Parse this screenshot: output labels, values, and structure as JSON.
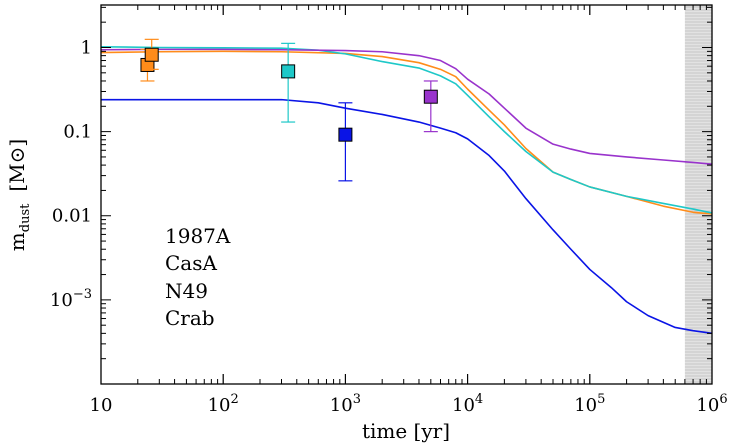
{
  "chart_data": {
    "type": "line",
    "xlabel": "time [yr]",
    "ylabel": {
      "main": "m",
      "sub": "dust",
      "unit": "[M⊙]"
    },
    "xscale": "log",
    "yscale": "log",
    "xlim": [
      10,
      1000000
    ],
    "ylim": [
      0.0001,
      3.2
    ],
    "xticks": [
      {
        "value": 10,
        "base": "10",
        "exp": ""
      },
      {
        "value": 100,
        "base": "10",
        "exp": "2"
      },
      {
        "value": 1000,
        "base": "10",
        "exp": "3"
      },
      {
        "value": 10000,
        "base": "10",
        "exp": "4"
      },
      {
        "value": 100000,
        "base": "10",
        "exp": "5"
      },
      {
        "value": 1000000,
        "base": "10",
        "exp": "6"
      }
    ],
    "yticks": [
      {
        "value": 0.001,
        "base": "10",
        "exp": "−3"
      },
      {
        "value": 0.01,
        "base": "0.01",
        "exp": ""
      },
      {
        "value": 0.1,
        "base": "0.1",
        "exp": ""
      },
      {
        "value": 1,
        "base": "1",
        "exp": ""
      }
    ],
    "shaded_region": {
      "x": [
        600000,
        1000000
      ],
      "color": "#bdbdbd"
    },
    "legend_position": "lower-left",
    "series": [
      {
        "name": "1987A",
        "color": "#ff8c1a",
        "x": [
          10,
          30,
          100,
          300,
          1000,
          2000,
          4000,
          6000,
          8000,
          10000,
          15000,
          20000,
          30000,
          50000,
          70000,
          100000,
          200000,
          400000,
          700000,
          1000000
        ],
        "y": [
          0.87,
          0.89,
          0.9,
          0.89,
          0.85,
          0.78,
          0.66,
          0.55,
          0.45,
          0.32,
          0.18,
          0.12,
          0.063,
          0.033,
          0.027,
          0.022,
          0.017,
          0.013,
          0.011,
          0.0105
        ]
      },
      {
        "name": "CasA",
        "color": "#1ec8c8",
        "x": [
          10,
          30,
          100,
          300,
          600,
          1000,
          2000,
          4000,
          6000,
          8000,
          10000,
          15000,
          20000,
          30000,
          50000,
          70000,
          100000,
          200000,
          400000,
          700000,
          1000000
        ],
        "y": [
          1.02,
          1.0,
          0.99,
          0.98,
          0.93,
          0.84,
          0.68,
          0.57,
          0.46,
          0.37,
          0.27,
          0.15,
          0.1,
          0.058,
          0.033,
          0.027,
          0.022,
          0.017,
          0.014,
          0.012,
          0.0108
        ]
      },
      {
        "name": "N49",
        "color": "#9933cc",
        "x": [
          10,
          30,
          100,
          300,
          1000,
          2000,
          4000,
          6000,
          8000,
          10000,
          15000,
          20000,
          30000,
          50000,
          70000,
          100000,
          200000,
          400000,
          700000,
          1000000
        ],
        "y": [
          0.94,
          0.95,
          0.95,
          0.94,
          0.92,
          0.89,
          0.8,
          0.7,
          0.56,
          0.42,
          0.28,
          0.19,
          0.11,
          0.071,
          0.062,
          0.055,
          0.05,
          0.046,
          0.043,
          0.041
        ]
      },
      {
        "name": "Crab",
        "color": "#0a14e6",
        "x": [
          10,
          30,
          100,
          300,
          600,
          1000,
          2000,
          4000,
          6000,
          8000,
          10000,
          15000,
          20000,
          30000,
          50000,
          70000,
          100000,
          150000,
          200000,
          300000,
          500000,
          700000,
          1000000
        ],
        "y": [
          0.24,
          0.24,
          0.24,
          0.24,
          0.22,
          0.19,
          0.16,
          0.13,
          0.11,
          0.097,
          0.082,
          0.052,
          0.034,
          0.016,
          0.0068,
          0.004,
          0.0023,
          0.0014,
          0.00095,
          0.00065,
          0.00047,
          0.00043,
          0.0004
        ]
      }
    ],
    "markers": [
      {
        "series": "1987A",
        "x": 24,
        "y": 0.62,
        "yerr": [
          0.4,
          0.95
        ],
        "color": "#ff8c1a"
      },
      {
        "series": "1987A",
        "x": 26,
        "y": 0.82,
        "yerr": [
          0.55,
          1.25
        ],
        "color": "#ff8c1a"
      },
      {
        "series": "CasA",
        "x": 340,
        "y": 0.52,
        "yerr": [
          0.13,
          1.12
        ],
        "color": "#1ec8c8"
      },
      {
        "series": "Crab",
        "x": 1000,
        "y": 0.092,
        "yerr": [
          0.026,
          0.22
        ],
        "color": "#0a14e6"
      },
      {
        "series": "N49",
        "x": 5000,
        "y": 0.26,
        "yerr": [
          0.1,
          0.4
        ],
        "color": "#9933cc"
      }
    ]
  }
}
